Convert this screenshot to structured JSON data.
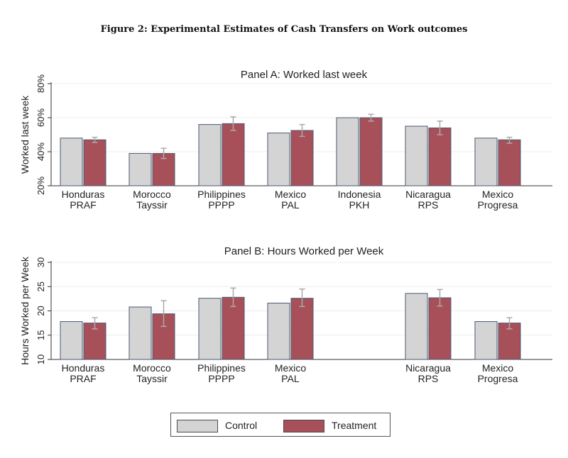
{
  "figure_title": "Figure 2:  Experimental Estimates of Cash Transfers on Work outcomes",
  "colors": {
    "control": "#d4d4d4",
    "treatment": "#a8505a",
    "errorbar": "#aaaaaa",
    "grid": "#ececec"
  },
  "legend": {
    "control_label": "Control",
    "treatment_label": "Treatment"
  },
  "chart_data": [
    {
      "type": "bar",
      "title": "Panel A: Worked last week",
      "ylabel": "Worked last week",
      "ylim": [
        20,
        80
      ],
      "yticks": [
        20,
        40,
        60,
        80
      ],
      "ytick_suffix": "%",
      "categories": [
        [
          "Honduras",
          "PRAF"
        ],
        [
          "Morocco",
          "Tayssir"
        ],
        [
          "Philippines",
          "PPPP"
        ],
        [
          "Mexico",
          "PAL"
        ],
        [
          "Indonesia",
          "PKH"
        ],
        [
          "Nicaragua",
          "RPS"
        ],
        [
          "Mexico",
          "Progresa"
        ]
      ],
      "series": [
        {
          "name": "Control",
          "values": [
            48,
            39,
            56,
            51,
            60,
            55,
            48
          ]
        },
        {
          "name": "Treatment",
          "values": [
            47,
            39,
            56.5,
            52.5,
            60,
            54,
            47
          ]
        }
      ],
      "error_bars": [
        [
          45.5,
          48.5
        ],
        [
          36,
          42
        ],
        [
          52.5,
          60.5
        ],
        [
          49,
          56
        ],
        [
          58,
          62
        ],
        [
          50,
          58
        ],
        [
          45,
          48.5
        ]
      ]
    },
    {
      "type": "bar",
      "title": "Panel B: Hours Worked per Week",
      "ylabel": "Hours Worked per Week",
      "ylim": [
        10,
        30
      ],
      "yticks": [
        10,
        15,
        20,
        25,
        30
      ],
      "ytick_suffix": "",
      "categories": [
        [
          "Honduras",
          "PRAF"
        ],
        [
          "Morocco",
          "Tayssir"
        ],
        [
          "Philippines",
          "PPPP"
        ],
        [
          "Mexico",
          "PAL"
        ],
        [
          "",
          ""
        ],
        [
          "Nicaragua",
          "RPS"
        ],
        [
          "Mexico",
          "Progresa"
        ]
      ],
      "series": [
        {
          "name": "Control",
          "values": [
            17.8,
            20.8,
            22.6,
            21.6,
            null,
            23.6,
            17.8
          ]
        },
        {
          "name": "Treatment",
          "values": [
            17.5,
            19.4,
            22.8,
            22.6,
            null,
            22.7,
            17.5
          ]
        }
      ],
      "error_bars": [
        [
          16.3,
          18.6
        ],
        [
          16.8,
          22.1
        ],
        [
          20.9,
          24.7
        ],
        [
          20.9,
          24.5
        ],
        null,
        [
          21.0,
          24.4
        ],
        [
          16.3,
          18.6
        ]
      ]
    }
  ]
}
